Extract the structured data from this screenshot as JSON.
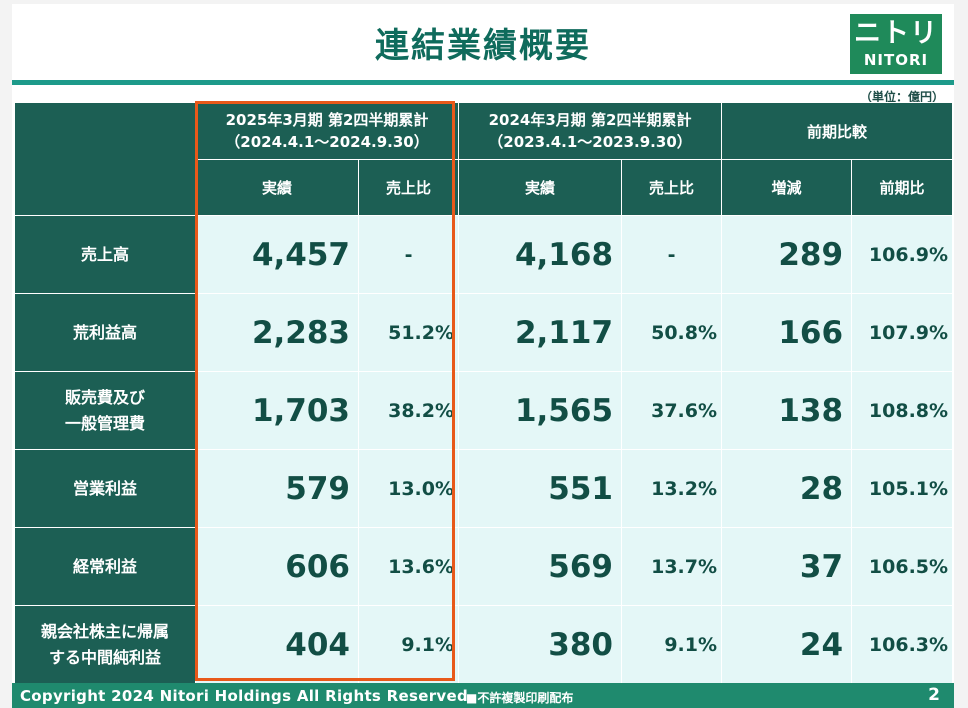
{
  "title": "連結業績概要",
  "logo": {
    "mark": "ニトリ",
    "word": "NITORI"
  },
  "unit_note": "（単位：億円）",
  "header": {
    "current_period": "2025年3月期 第2四半期累計",
    "current_range": "（2024.4.1～2024.9.30）",
    "prior_period": "2024年3月期 第2四半期累計",
    "prior_range": "（2023.4.1～2023.9.30）",
    "comparison": "前期比較",
    "sub": [
      "実績",
      "売上比",
      "実績",
      "売上比",
      "増減",
      "前期比"
    ]
  },
  "rows": [
    {
      "label": "売上高",
      "cur": "4,457",
      "cur_ratio": "-",
      "prev": "4,168",
      "prev_ratio": "-",
      "diff": "289",
      "yoy": "106.9%"
    },
    {
      "label": "荒利益高",
      "cur": "2,283",
      "cur_ratio": "51.2%",
      "prev": "2,117",
      "prev_ratio": "50.8%",
      "diff": "166",
      "yoy": "107.9%"
    },
    {
      "label": "販売費及び",
      "label2": "一般管理費",
      "cur": "1,703",
      "cur_ratio": "38.2%",
      "prev": "1,565",
      "prev_ratio": "37.6%",
      "diff": "138",
      "yoy": "108.8%"
    },
    {
      "label": "営業利益",
      "cur": "579",
      "cur_ratio": "13.0%",
      "prev": "551",
      "prev_ratio": "13.2%",
      "diff": "28",
      "yoy": "105.1%"
    },
    {
      "label": "経常利益",
      "cur": "606",
      "cur_ratio": "13.6%",
      "prev": "569",
      "prev_ratio": "13.7%",
      "diff": "37",
      "yoy": "106.5%"
    },
    {
      "label": "親会社株主に帰属",
      "label2": "する中間純利益",
      "cur": "404",
      "cur_ratio": "9.1%",
      "prev": "380",
      "prev_ratio": "9.1%",
      "diff": "24",
      "yoy": "106.3%"
    }
  ],
  "footer": {
    "copyright": "Copyright 2024 Nitori Holdings All Rights Reserved",
    "notice": "■不許複製印刷配布",
    "page": "2"
  },
  "colors": {
    "header_bg": "#1c5f54",
    "cell_bg": "#e4f7f7",
    "accent": "#e8591a",
    "rule": "#1d9a8a"
  }
}
